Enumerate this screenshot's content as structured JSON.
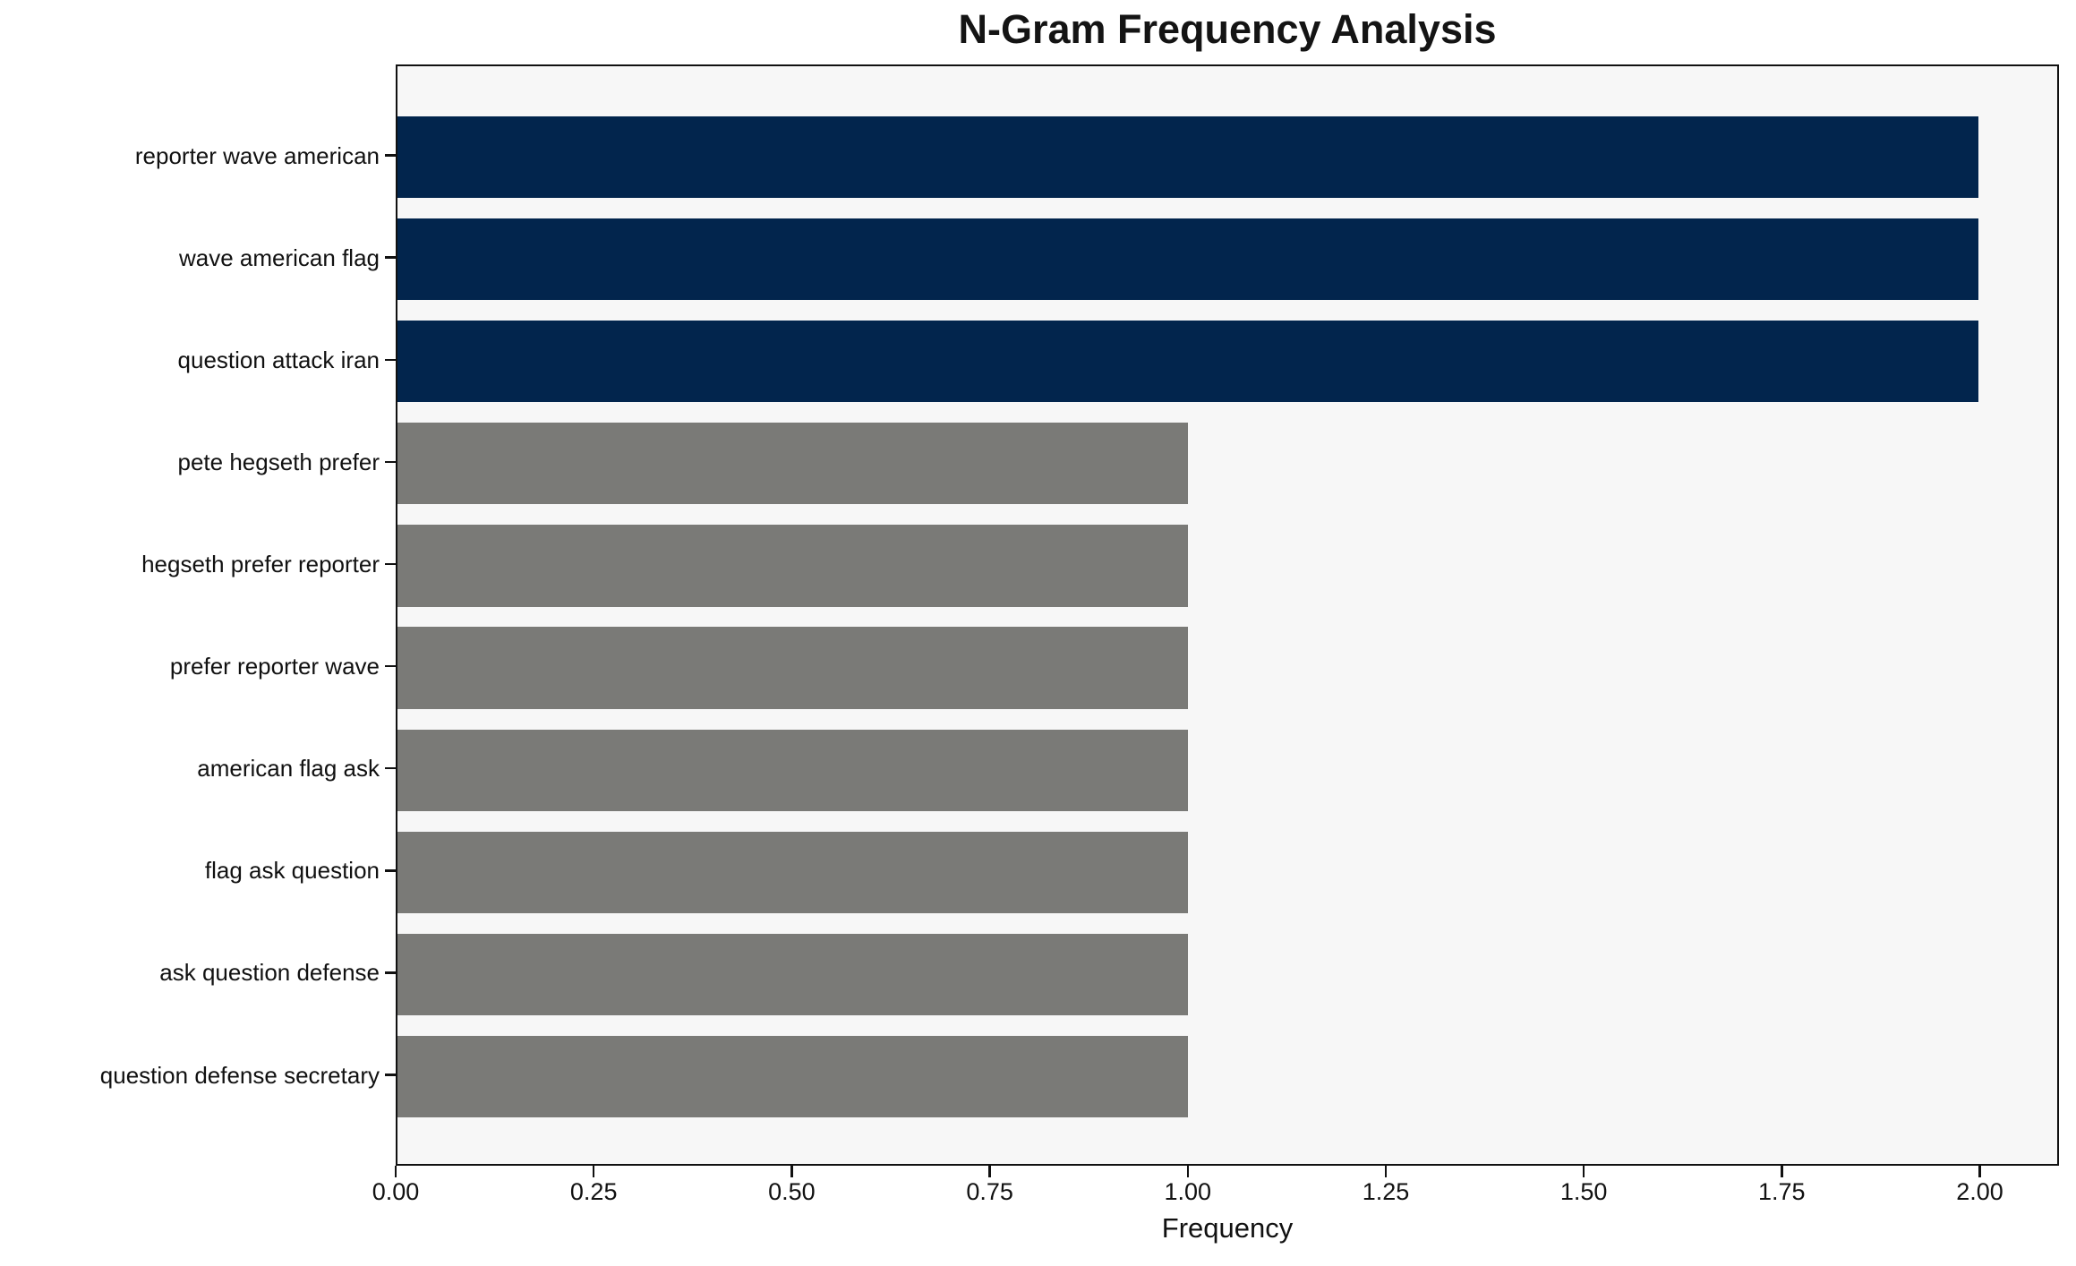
{
  "chart_data": {
    "type": "bar",
    "orientation": "horizontal",
    "title": "N-Gram Frequency Analysis",
    "xlabel": "Frequency",
    "ylabel": "",
    "categories": [
      "reporter wave american",
      "wave american flag",
      "question attack iran",
      "pete hegseth prefer",
      "hegseth prefer reporter",
      "prefer reporter wave",
      "american flag ask",
      "flag ask question",
      "ask question defense",
      "question defense secretary"
    ],
    "values": [
      2,
      2,
      2,
      1,
      1,
      1,
      1,
      1,
      1,
      1
    ],
    "bar_colors": [
      "#02254d",
      "#02254d",
      "#02254d",
      "#7a7a77",
      "#7a7a77",
      "#7a7a77",
      "#7a7a77",
      "#7a7a77",
      "#7a7a77",
      "#7a7a77"
    ],
    "xlim": [
      0,
      2.1
    ],
    "xticks": [
      0,
      0.25,
      0.5,
      0.75,
      1.0,
      1.25,
      1.5,
      1.75,
      2.0
    ],
    "xtick_labels": [
      "0.00",
      "0.25",
      "0.50",
      "0.75",
      "1.00",
      "1.25",
      "1.50",
      "1.75",
      "2.00"
    ],
    "grid": false,
    "legend": false,
    "colors": {
      "highlight": "#02254d",
      "default": "#7a7a77",
      "plot_background": "#f7f7f7",
      "figure_background": "#ffffff",
      "axis": "#111111",
      "text": "#111111"
    }
  }
}
